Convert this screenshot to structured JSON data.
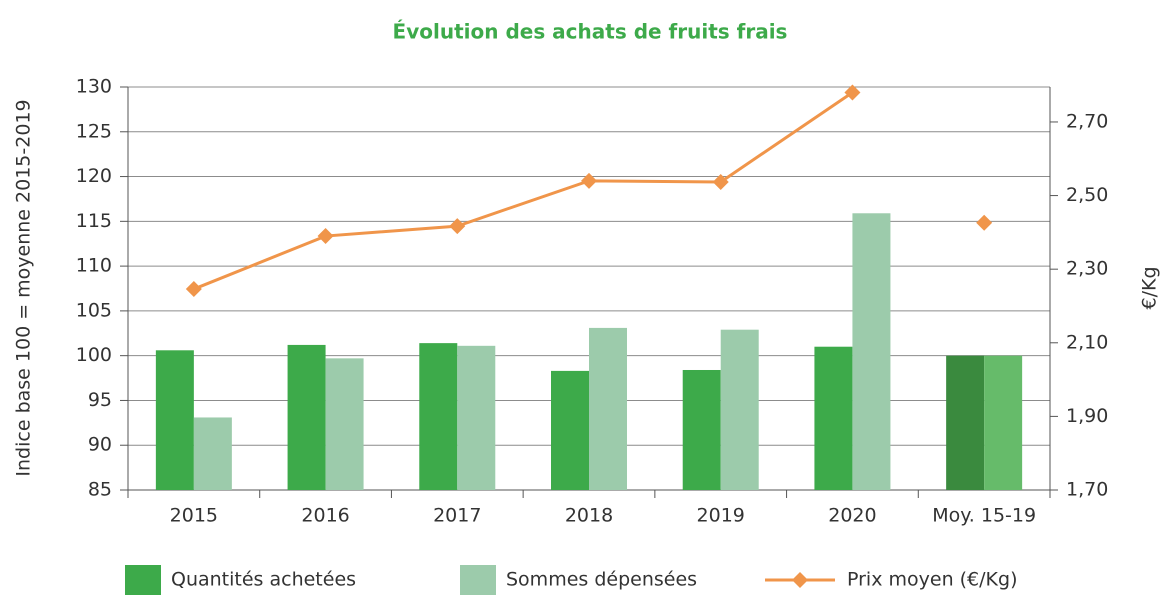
{
  "chart_data": {
    "type": "bar",
    "title": "Évolution des achats de fruits frais",
    "y_label": "Indice base 100 = moyenne 2015-2019",
    "y2_label": "€/Kg",
    "categories": [
      "2015",
      "2016",
      "2017",
      "2018",
      "2019",
      "2020",
      "Moy. 15-19"
    ],
    "series": [
      {
        "name": "Quantités achetées",
        "type": "bar",
        "color": "#3daa4a",
        "colors": [
          "#3daa4a",
          "#3daa4a",
          "#3daa4a",
          "#3daa4a",
          "#3daa4a",
          "#3daa4a",
          "#3a8a3e"
        ],
        "values": [
          100.6,
          101.2,
          101.4,
          98.3,
          98.4,
          101.0,
          100
        ]
      },
      {
        "name": "Sommes dépensées",
        "type": "bar",
        "color": "#9ccbab",
        "colors": [
          "#9ccbab",
          "#9ccbab",
          "#9ccbab",
          "#9ccbab",
          "#9ccbab",
          "#9ccbab",
          "#66bb6a"
        ],
        "values": [
          93.1,
          99.7,
          101.1,
          103.1,
          102.9,
          115.9,
          100
        ]
      },
      {
        "name": "Prix moyen (€/Kg)",
        "type": "line",
        "axis": "y2",
        "color": "#f0954a",
        "values": [
          2.246,
          2.39,
          2.417,
          2.54,
          2.537,
          2.78,
          2.426
        ]
      }
    ],
    "ylim": [
      85,
      130
    ],
    "yticks": [
      85,
      90,
      95,
      100,
      105,
      110,
      115,
      120,
      125,
      130
    ],
    "y2lim": [
      1.7,
      2.795
    ],
    "y2ticks": [
      {
        "value": 1.7,
        "label": "1,70"
      },
      {
        "value": 1.9,
        "label": "1,90"
      },
      {
        "value": 2.1,
        "label": "2,10"
      },
      {
        "value": 2.3,
        "label": "2,30"
      },
      {
        "value": 2.5,
        "label": "2,50"
      },
      {
        "value": 2.7,
        "label": "2,70"
      }
    ],
    "grid": true
  }
}
